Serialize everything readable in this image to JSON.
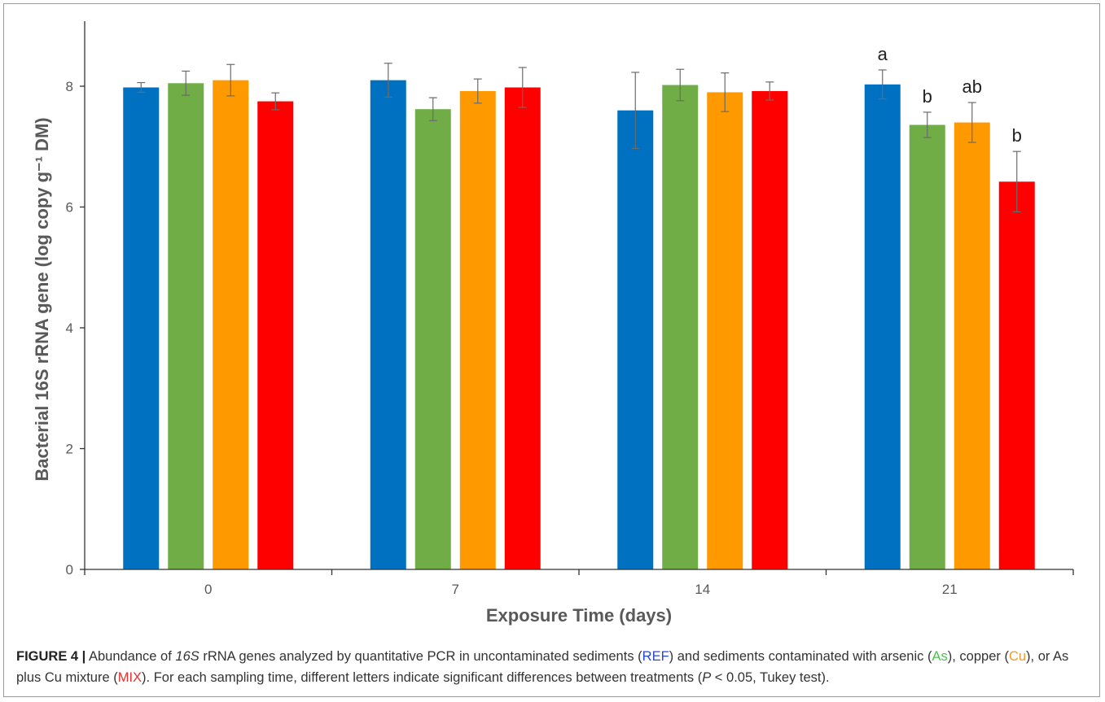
{
  "chart_data": {
    "type": "bar",
    "categories": [
      "0",
      "7",
      "14",
      "21"
    ],
    "xlabel": "Exposure Time (days)",
    "ylabel": "Bacterial 16S rRNA gene (log copy g⁻¹ DM)",
    "ylim": [
      0,
      9
    ],
    "yticks": [
      0,
      2,
      4,
      6,
      8
    ],
    "grid": false,
    "legend": "none",
    "series": [
      {
        "color": "#0070C0",
        "values": [
          7.98,
          8.1,
          7.6,
          8.03
        ],
        "errors": [
          0.08,
          0.28,
          0.63,
          0.24
        ]
      },
      {
        "color": "#70AD47",
        "values": [
          8.05,
          7.62,
          8.02,
          7.36
        ],
        "errors": [
          0.2,
          0.19,
          0.26,
          0.21
        ]
      },
      {
        "color": "#FF9900",
        "values": [
          8.1,
          7.92,
          7.9,
          7.4
        ],
        "errors": [
          0.26,
          0.2,
          0.32,
          0.33
        ]
      },
      {
        "color": "#FF0000",
        "values": [
          7.75,
          7.98,
          7.92,
          6.42
        ],
        "errors": [
          0.14,
          0.33,
          0.15,
          0.5
        ]
      }
    ],
    "annotations": [
      {
        "category": "21",
        "series_index": 0,
        "text": "a"
      },
      {
        "category": "21",
        "series_index": 1,
        "text": "b"
      },
      {
        "category": "21",
        "series_index": 2,
        "text": "ab"
      },
      {
        "category": "21",
        "series_index": 3,
        "text": "b"
      }
    ]
  },
  "caption": {
    "label": "FIGURE 4 |",
    "t1": " Abundance of ",
    "t2": "16S",
    "t3": " rRNA genes analyzed by quantitative PCR in uncontaminated sediments (",
    "ref": "REF",
    "t4": ") and sediments contaminated with arsenic (",
    "as": "As",
    "t5": "), copper (",
    "cu": "Cu",
    "t6": "), or As plus Cu mixture (",
    "mix": "MIX",
    "t7": "). For each sampling time, different letters indicate significant differences between treatments (",
    "p": "P",
    "t8": " < 0.05, Tukey test)."
  }
}
